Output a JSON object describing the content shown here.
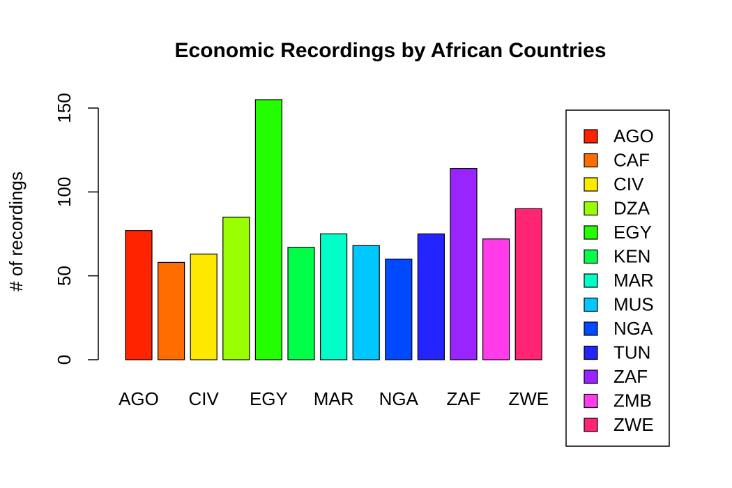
{
  "chart_data": {
    "type": "bar",
    "title": "Economic Recordings by African Countries",
    "xlabel": "",
    "ylabel": "# of recordings",
    "ylim": [
      0,
      160
    ],
    "yticks": [
      0,
      50,
      100,
      150
    ],
    "categories": [
      "AGO",
      "CAF",
      "CIV",
      "DZA",
      "EGY",
      "KEN",
      "MAR",
      "MUS",
      "NGA",
      "TUN",
      "ZAF",
      "ZMB",
      "ZWE"
    ],
    "values": [
      77,
      58,
      63,
      85,
      155,
      67,
      75,
      68,
      60,
      75,
      114,
      72,
      90
    ],
    "colors": [
      "#FF2400",
      "#FF6D00",
      "#FFE800",
      "#99FF00",
      "#24FF00",
      "#00FF49",
      "#00FFC8",
      "#00C8FF",
      "#0049FF",
      "#2424FF",
      "#9924FF",
      "#FF3BEA",
      "#FF2474"
    ],
    "shown_category_labels": [
      "AGO",
      "CIV",
      "EGY",
      "MAR",
      "NGA",
      "ZAF",
      "ZWE"
    ],
    "legend": {
      "position": "right",
      "entries": [
        "AGO",
        "CAF",
        "CIV",
        "DZA",
        "EGY",
        "KEN",
        "MAR",
        "MUS",
        "NGA",
        "TUN",
        "ZAF",
        "ZMB",
        "ZWE"
      ]
    },
    "grid": false
  }
}
